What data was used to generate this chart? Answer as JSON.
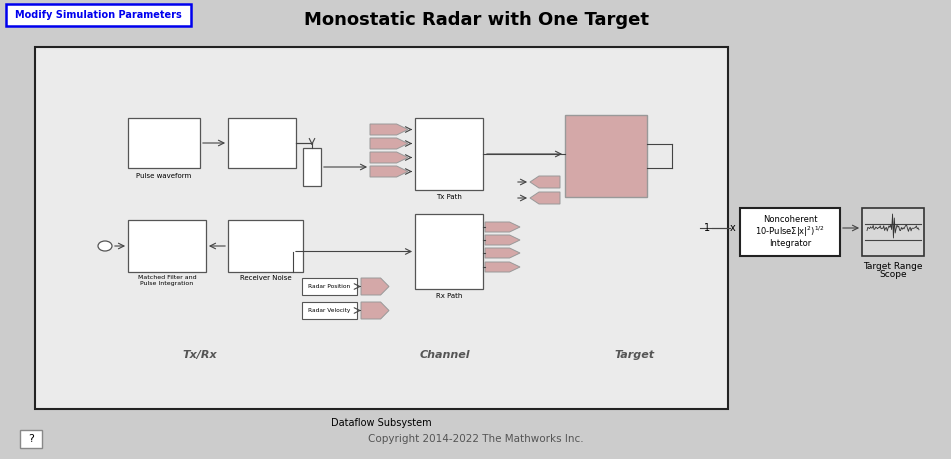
{
  "title": "Monostatic Radar with One Target",
  "fig_bg": "#cccccc",
  "modify_btn_text": "Modify Simulation Parameters",
  "modify_btn_color": "#0000ee",
  "subsystem_label": "Dataflow Subsystem",
  "copyright_text": "Copyright 2014-2022 The Mathworks Inc.",
  "question_btn_text": "?",
  "section_labels": [
    "Tx/Rx",
    "Channel",
    "Target"
  ],
  "sec_bg": "#d8d8d8",
  "main_bg": "#e8e8e8",
  "block_white": "#ffffff",
  "block_pink": "#d4a8a8",
  "integrator_line1": "Noncoherent",
  "integrator_line2": "10-PulseΣ|x|²)½",
  "integrator_line3": "Integrator",
  "scope_label1": "Target Range",
  "scope_label2": "Scope"
}
